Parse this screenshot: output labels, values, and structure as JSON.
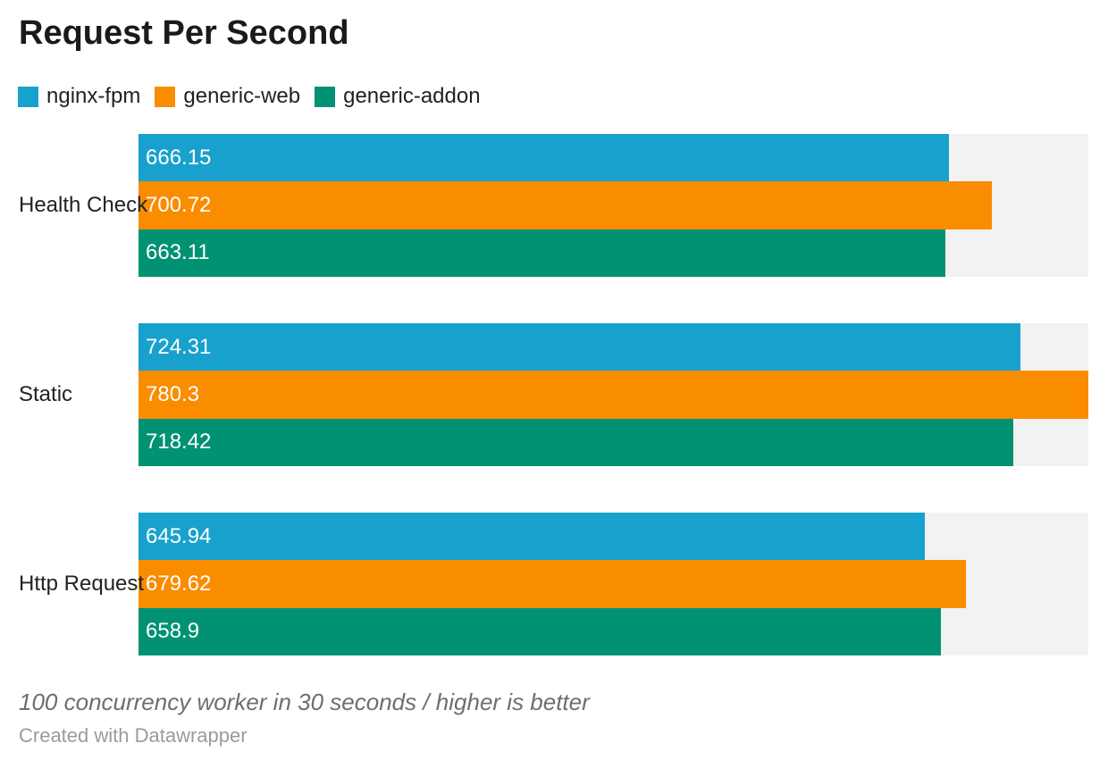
{
  "header": {
    "title": "Request Per Second"
  },
  "chart_data": {
    "type": "bar",
    "orientation": "horizontal",
    "title": "Request Per Second",
    "categories": [
      "Health Check",
      "Static",
      "Http Request"
    ],
    "series": [
      {
        "name": "nginx-fpm",
        "color": "#18a1cd",
        "values": [
          666.15,
          724.31,
          645.94
        ],
        "value_labels": [
          "666.15",
          "724.31",
          "645.94"
        ]
      },
      {
        "name": "generic-web",
        "color": "#fa8c00",
        "values": [
          700.72,
          780.3,
          679.62
        ],
        "value_labels": [
          "700.72",
          "780.3",
          "679.62"
        ]
      },
      {
        "name": "generic-addon",
        "color": "#009272",
        "values": [
          663.11,
          718.42,
          658.9
        ],
        "value_labels": [
          "663.11",
          "718.42",
          "658.9"
        ]
      }
    ],
    "value_axis_max": 780.3,
    "xlim": [
      0,
      780.3
    ],
    "grid": false,
    "legend_position": "top",
    "track_color": "#f2f2f2",
    "value_label_color": "#ffffff"
  },
  "footer": {
    "note": "100 concurrency worker in 30 seconds / higher is better",
    "attribution": "Created with Datawrapper"
  }
}
